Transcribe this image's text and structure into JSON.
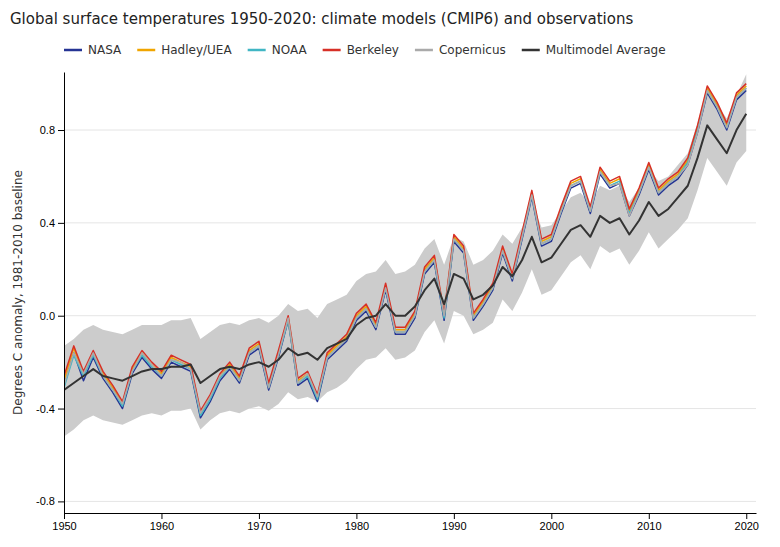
{
  "chart_data": {
    "type": "line",
    "title": "Global surface temperatures 1950-2020: climate models (CMIP6) and observations",
    "y_label": "Degrees C anomaly, 1981-2010 baseline",
    "xlim": [
      1950,
      2021
    ],
    "ylim": [
      -0.85,
      1.05
    ],
    "xticks": [
      1950,
      1960,
      1970,
      1980,
      1990,
      2000,
      2010,
      2020
    ],
    "yticks": [
      -0.8,
      -0.4,
      {
        "value": 0.0,
        "label": "0.0"
      },
      0.4,
      0.8
    ],
    "grid": "y",
    "x": [
      1950,
      1951,
      1952,
      1953,
      1954,
      1955,
      1956,
      1957,
      1958,
      1959,
      1960,
      1961,
      1962,
      1963,
      1964,
      1965,
      1966,
      1967,
      1968,
      1969,
      1970,
      1971,
      1972,
      1973,
      1974,
      1975,
      1976,
      1977,
      1978,
      1979,
      1980,
      1981,
      1982,
      1983,
      1984,
      1985,
      1986,
      1987,
      1988,
      1989,
      1990,
      1991,
      1992,
      1993,
      1994,
      1995,
      1996,
      1997,
      1998,
      1999,
      2000,
      2001,
      2002,
      2003,
      2004,
      2005,
      2006,
      2007,
      2008,
      2009,
      2010,
      2011,
      2012,
      2013,
      2014,
      2015,
      2016,
      2017,
      2018,
      2019,
      2020
    ],
    "band": {
      "color": "#cccccc",
      "upper": [
        -0.13,
        -0.1,
        -0.06,
        -0.04,
        -0.06,
        -0.07,
        -0.08,
        -0.06,
        -0.04,
        -0.04,
        -0.04,
        -0.02,
        -0.02,
        -0.01,
        -0.1,
        -0.07,
        -0.04,
        -0.03,
        -0.04,
        -0.02,
        -0.01,
        -0.03,
        0.0,
        0.05,
        0.02,
        0.03,
        -0.01,
        0.05,
        0.07,
        0.09,
        0.15,
        0.18,
        0.19,
        0.24,
        0.18,
        0.19,
        0.22,
        0.29,
        0.33,
        0.22,
        0.34,
        0.32,
        0.22,
        0.24,
        0.28,
        0.35,
        0.31,
        0.38,
        0.49,
        0.38,
        0.39,
        0.45,
        0.51,
        0.53,
        0.48,
        0.56,
        0.54,
        0.56,
        0.49,
        0.55,
        0.63,
        0.58,
        0.6,
        0.65,
        0.7,
        0.83,
        0.97,
        0.91,
        0.85,
        0.95,
        1.04
      ],
      "lower": [
        -0.52,
        -0.49,
        -0.45,
        -0.43,
        -0.45,
        -0.46,
        -0.47,
        -0.45,
        -0.43,
        -0.42,
        -0.43,
        -0.41,
        -0.41,
        -0.4,
        -0.49,
        -0.45,
        -0.42,
        -0.41,
        -0.42,
        -0.4,
        -0.39,
        -0.41,
        -0.38,
        -0.33,
        -0.36,
        -0.35,
        -0.37,
        -0.33,
        -0.31,
        -0.28,
        -0.23,
        -0.19,
        -0.18,
        -0.14,
        -0.19,
        -0.18,
        -0.15,
        -0.07,
        -0.02,
        -0.12,
        0.02,
        0.0,
        -0.08,
        -0.06,
        -0.03,
        0.07,
        0.02,
        0.1,
        0.2,
        0.09,
        0.11,
        0.17,
        0.23,
        0.26,
        0.2,
        0.3,
        0.27,
        0.29,
        0.22,
        0.28,
        0.36,
        0.29,
        0.33,
        0.37,
        0.42,
        0.54,
        0.68,
        0.62,
        0.56,
        0.66,
        0.71
      ]
    },
    "series": [
      {
        "name": "NASA",
        "color": "#253494",
        "values": [
          -0.3,
          -0.16,
          -0.28,
          -0.18,
          -0.27,
          -0.33,
          -0.4,
          -0.25,
          -0.18,
          -0.23,
          -0.27,
          -0.2,
          -0.22,
          -0.24,
          -0.44,
          -0.37,
          -0.28,
          -0.23,
          -0.29,
          -0.17,
          -0.14,
          -0.32,
          -0.18,
          -0.02,
          -0.3,
          -0.27,
          -0.37,
          -0.19,
          -0.15,
          -0.11,
          -0.02,
          0.02,
          -0.06,
          0.11,
          -0.08,
          -0.08,
          -0.01,
          0.18,
          0.23,
          -0.02,
          0.32,
          0.27,
          -0.02,
          0.04,
          0.11,
          0.27,
          0.15,
          0.33,
          0.51,
          0.3,
          0.32,
          0.44,
          0.55,
          0.57,
          0.44,
          0.61,
          0.55,
          0.57,
          0.43,
          0.52,
          0.63,
          0.52,
          0.56,
          0.59,
          0.65,
          0.79,
          0.96,
          0.89,
          0.8,
          0.93,
          0.97
        ]
      },
      {
        "name": "Hadley/UEA",
        "color": "#f0a500",
        "values": [
          -0.28,
          -0.14,
          -0.25,
          -0.16,
          -0.25,
          -0.31,
          -0.38,
          -0.23,
          -0.16,
          -0.21,
          -0.25,
          -0.18,
          -0.2,
          -0.22,
          -0.42,
          -0.35,
          -0.26,
          -0.21,
          -0.27,
          -0.15,
          -0.12,
          -0.3,
          -0.16,
          -0.01,
          -0.28,
          -0.25,
          -0.35,
          -0.17,
          -0.13,
          -0.09,
          0.0,
          0.04,
          -0.04,
          0.13,
          -0.06,
          -0.06,
          0.01,
          0.2,
          0.25,
          0.0,
          0.34,
          0.29,
          0.0,
          0.06,
          0.13,
          0.29,
          0.17,
          0.35,
          0.53,
          0.32,
          0.34,
          0.46,
          0.57,
          0.59,
          0.46,
          0.63,
          0.57,
          0.59,
          0.45,
          0.54,
          0.65,
          0.54,
          0.58,
          0.61,
          0.67,
          0.81,
          0.98,
          0.91,
          0.82,
          0.95,
          0.99
        ]
      },
      {
        "name": "NOAA",
        "color": "#41b6c4",
        "values": [
          -0.31,
          -0.17,
          -0.26,
          -0.17,
          -0.26,
          -0.32,
          -0.39,
          -0.24,
          -0.17,
          -0.22,
          -0.26,
          -0.19,
          -0.21,
          -0.23,
          -0.43,
          -0.36,
          -0.27,
          -0.22,
          -0.28,
          -0.16,
          -0.13,
          -0.31,
          -0.17,
          -0.02,
          -0.29,
          -0.26,
          -0.36,
          -0.18,
          -0.14,
          -0.1,
          -0.01,
          0.03,
          -0.05,
          0.12,
          -0.07,
          -0.07,
          0.0,
          0.19,
          0.24,
          -0.01,
          0.33,
          0.28,
          -0.01,
          0.05,
          0.12,
          0.28,
          0.16,
          0.34,
          0.52,
          0.31,
          0.33,
          0.45,
          0.56,
          0.58,
          0.45,
          0.62,
          0.56,
          0.58,
          0.44,
          0.53,
          0.64,
          0.53,
          0.57,
          0.6,
          0.66,
          0.8,
          0.97,
          0.9,
          0.81,
          0.94,
          0.98
        ]
      },
      {
        "name": "Berkeley",
        "color": "#d73027",
        "values": [
          -0.26,
          -0.13,
          -0.24,
          -0.15,
          -0.24,
          -0.3,
          -0.37,
          -0.22,
          -0.15,
          -0.2,
          -0.24,
          -0.17,
          -0.19,
          -0.21,
          -0.41,
          -0.34,
          -0.25,
          -0.2,
          -0.26,
          -0.14,
          -0.11,
          -0.29,
          -0.15,
          0.0,
          -0.27,
          -0.24,
          -0.34,
          -0.16,
          -0.12,
          -0.08,
          0.01,
          0.05,
          -0.03,
          0.14,
          -0.05,
          -0.05,
          0.02,
          0.21,
          0.26,
          0.01,
          0.35,
          0.3,
          0.01,
          0.07,
          0.14,
          0.3,
          0.18,
          0.36,
          0.54,
          0.33,
          0.35,
          0.47,
          0.58,
          0.6,
          0.47,
          0.64,
          0.58,
          0.6,
          0.46,
          0.55,
          0.66,
          0.55,
          0.59,
          0.62,
          0.68,
          0.82,
          0.99,
          0.92,
          0.83,
          0.96,
          1.0
        ]
      },
      {
        "name": "Copernicus",
        "color": "#aaaaaa",
        "values": [
          -0.3,
          -0.16,
          -0.25,
          -0.16,
          -0.26,
          -0.32,
          -0.38,
          -0.24,
          -0.16,
          -0.21,
          -0.26,
          -0.19,
          -0.2,
          -0.23,
          -0.42,
          -0.35,
          -0.26,
          -0.22,
          -0.28,
          -0.16,
          -0.13,
          -0.31,
          -0.17,
          -0.01,
          -0.29,
          -0.25,
          -0.35,
          -0.18,
          -0.14,
          -0.1,
          -0.01,
          0.03,
          -0.05,
          0.12,
          -0.07,
          -0.07,
          0.0,
          0.19,
          0.24,
          0.0,
          0.33,
          0.28,
          -0.01,
          0.05,
          0.12,
          0.28,
          0.16,
          0.34,
          0.52,
          0.31,
          0.33,
          0.45,
          0.56,
          0.58,
          0.45,
          0.62,
          0.56,
          0.57,
          0.43,
          0.53,
          0.64,
          0.53,
          0.57,
          0.6,
          0.65,
          0.79,
          0.97,
          0.9,
          0.81,
          0.94,
          0.98
        ]
      },
      {
        "name": "Multimodel Average",
        "color": "#333333",
        "values": [
          -0.32,
          -0.29,
          -0.26,
          -0.23,
          -0.26,
          -0.27,
          -0.28,
          -0.26,
          -0.24,
          -0.23,
          -0.23,
          -0.22,
          -0.22,
          -0.21,
          -0.29,
          -0.26,
          -0.23,
          -0.22,
          -0.23,
          -0.21,
          -0.2,
          -0.22,
          -0.19,
          -0.14,
          -0.17,
          -0.16,
          -0.19,
          -0.14,
          -0.12,
          -0.1,
          -0.04,
          -0.01,
          0.0,
          0.05,
          0.0,
          0.0,
          0.04,
          0.11,
          0.16,
          0.05,
          0.18,
          0.16,
          0.07,
          0.09,
          0.13,
          0.21,
          0.17,
          0.24,
          0.34,
          0.23,
          0.25,
          0.31,
          0.37,
          0.39,
          0.34,
          0.43,
          0.4,
          0.42,
          0.35,
          0.41,
          0.49,
          0.43,
          0.46,
          0.51,
          0.56,
          0.68,
          0.82,
          0.76,
          0.7,
          0.8,
          0.87
        ]
      }
    ]
  }
}
